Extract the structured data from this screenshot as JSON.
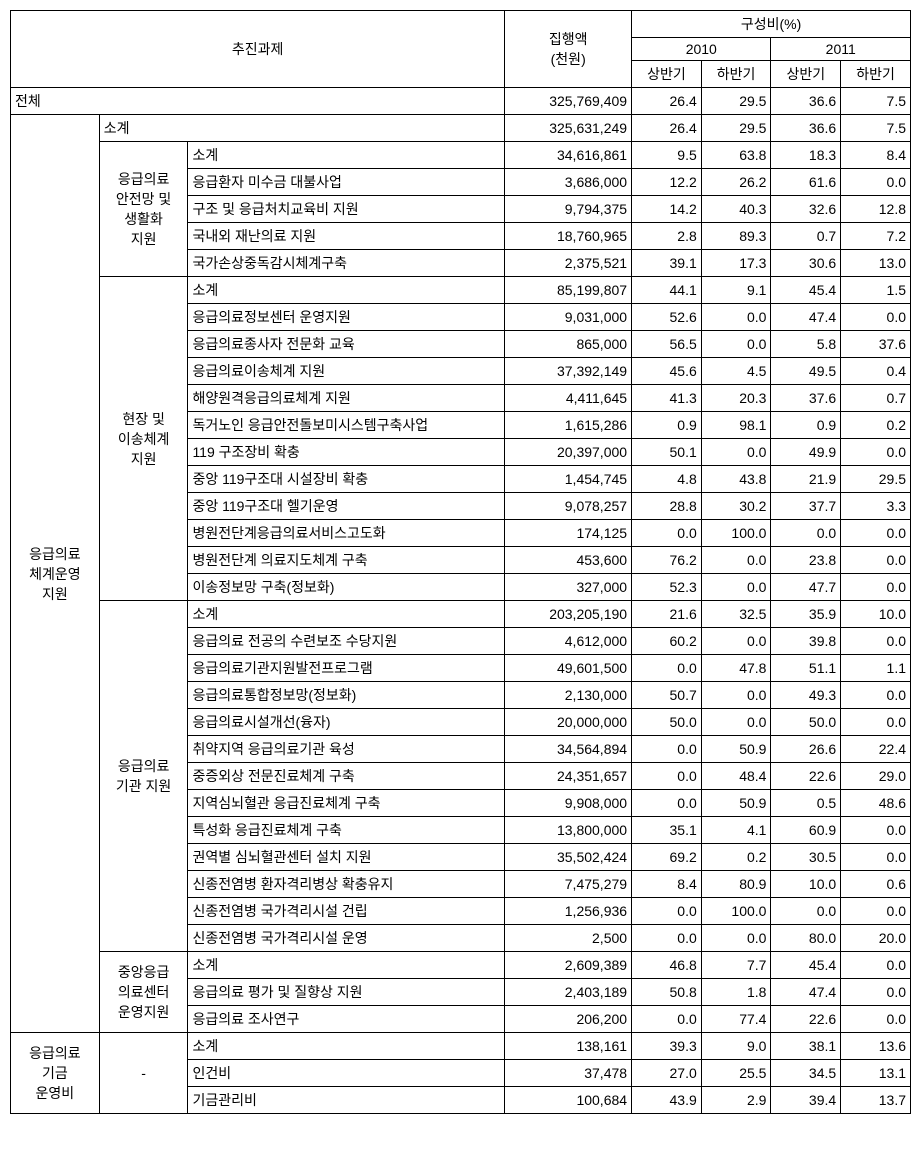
{
  "headers": {
    "task": "추진과제",
    "amount": "집행액\n(천원)",
    "ratio": "구성비(%)",
    "y2010": "2010",
    "y2011": "2011",
    "h1": "상반기",
    "h2": "하반기"
  },
  "total": {
    "label": "전체",
    "amount": "325,769,409",
    "p10h1": "26.4",
    "p10h2": "29.5",
    "p11h1": "36.6",
    "p11h2": "7.5"
  },
  "groupA": {
    "label": "응급의료\n체계운영\n지원",
    "subtotal": {
      "label": "소계",
      "amount": "325,631,249",
      "p10h1": "26.4",
      "p10h2": "29.5",
      "p11h1": "36.6",
      "p11h2": "7.5"
    },
    "sub1": {
      "label": "응급의료\n안전망 및\n생활화\n지원",
      "rows": [
        {
          "name": "소계",
          "amount": "34,616,861",
          "p10h1": "9.5",
          "p10h2": "63.8",
          "p11h1": "18.3",
          "p11h2": "8.4"
        },
        {
          "name": "응급환자 미수금 대불사업",
          "amount": "3,686,000",
          "p10h1": "12.2",
          "p10h2": "26.2",
          "p11h1": "61.6",
          "p11h2": "0.0"
        },
        {
          "name": "구조 및 응급처치교육비 지원",
          "amount": "9,794,375",
          "p10h1": "14.2",
          "p10h2": "40.3",
          "p11h1": "32.6",
          "p11h2": "12.8"
        },
        {
          "name": "국내외 재난의료 지원",
          "amount": "18,760,965",
          "p10h1": "2.8",
          "p10h2": "89.3",
          "p11h1": "0.7",
          "p11h2": "7.2"
        },
        {
          "name": "국가손상중독감시체계구축",
          "amount": "2,375,521",
          "p10h1": "39.1",
          "p10h2": "17.3",
          "p11h1": "30.6",
          "p11h2": "13.0"
        }
      ]
    },
    "sub2": {
      "label": "현장 및\n이송체계\n지원",
      "rows": [
        {
          "name": "소계",
          "amount": "85,199,807",
          "p10h1": "44.1",
          "p10h2": "9.1",
          "p11h1": "45.4",
          "p11h2": "1.5"
        },
        {
          "name": "응급의료정보센터 운영지원",
          "amount": "9,031,000",
          "p10h1": "52.6",
          "p10h2": "0.0",
          "p11h1": "47.4",
          "p11h2": "0.0"
        },
        {
          "name": "응급의료종사자 전문화 교육",
          "amount": "865,000",
          "p10h1": "56.5",
          "p10h2": "0.0",
          "p11h1": "5.8",
          "p11h2": "37.6"
        },
        {
          "name": "응급의료이송체계 지원",
          "amount": "37,392,149",
          "p10h1": "45.6",
          "p10h2": "4.5",
          "p11h1": "49.5",
          "p11h2": "0.4"
        },
        {
          "name": "해양원격응급의료체계 지원",
          "amount": "4,411,645",
          "p10h1": "41.3",
          "p10h2": "20.3",
          "p11h1": "37.6",
          "p11h2": "0.7"
        },
        {
          "name": "독거노인 응급안전돌보미시스템구축사업",
          "amount": "1,615,286",
          "p10h1": "0.9",
          "p10h2": "98.1",
          "p11h1": "0.9",
          "p11h2": "0.2"
        },
        {
          "name": "119 구조장비 확충",
          "amount": "20,397,000",
          "p10h1": "50.1",
          "p10h2": "0.0",
          "p11h1": "49.9",
          "p11h2": "0.0"
        },
        {
          "name": "중앙 119구조대 시설장비 확충",
          "amount": "1,454,745",
          "p10h1": "4.8",
          "p10h2": "43.8",
          "p11h1": "21.9",
          "p11h2": "29.5"
        },
        {
          "name": "중앙 119구조대 헬기운영",
          "amount": "9,078,257",
          "p10h1": "28.8",
          "p10h2": "30.2",
          "p11h1": "37.7",
          "p11h2": "3.3"
        },
        {
          "name": "병원전단계응급의료서비스고도화",
          "amount": "174,125",
          "p10h1": "0.0",
          "p10h2": "100.0",
          "p11h1": "0.0",
          "p11h2": "0.0"
        },
        {
          "name": "병원전단계 의료지도체계 구축",
          "amount": "453,600",
          "p10h1": "76.2",
          "p10h2": "0.0",
          "p11h1": "23.8",
          "p11h2": "0.0"
        },
        {
          "name": "이송정보망 구축(정보화)",
          "amount": "327,000",
          "p10h1": "52.3",
          "p10h2": "0.0",
          "p11h1": "47.7",
          "p11h2": "0.0"
        }
      ]
    },
    "sub3": {
      "label": "응급의료\n기관 지원",
      "rows": [
        {
          "name": "소계",
          "amount": "203,205,190",
          "p10h1": "21.6",
          "p10h2": "32.5",
          "p11h1": "35.9",
          "p11h2": "10.0"
        },
        {
          "name": "응급의료 전공의 수련보조 수당지원",
          "amount": "4,612,000",
          "p10h1": "60.2",
          "p10h2": "0.0",
          "p11h1": "39.8",
          "p11h2": "0.0"
        },
        {
          "name": "응급의료기관지원발전프로그램",
          "amount": "49,601,500",
          "p10h1": "0.0",
          "p10h2": "47.8",
          "p11h1": "51.1",
          "p11h2": "1.1"
        },
        {
          "name": "응급의료통합정보망(정보화)",
          "amount": "2,130,000",
          "p10h1": "50.7",
          "p10h2": "0.0",
          "p11h1": "49.3",
          "p11h2": "0.0"
        },
        {
          "name": "응급의료시설개선(융자)",
          "amount": "20,000,000",
          "p10h1": "50.0",
          "p10h2": "0.0",
          "p11h1": "50.0",
          "p11h2": "0.0"
        },
        {
          "name": "취약지역 응급의료기관 육성",
          "amount": "34,564,894",
          "p10h1": "0.0",
          "p10h2": "50.9",
          "p11h1": "26.6",
          "p11h2": "22.4"
        },
        {
          "name": "중증외상 전문진료체계 구축",
          "amount": "24,351,657",
          "p10h1": "0.0",
          "p10h2": "48.4",
          "p11h1": "22.6",
          "p11h2": "29.0"
        },
        {
          "name": "지역심뇌혈관 응급진료체계 구축",
          "amount": "9,908,000",
          "p10h1": "0.0",
          "p10h2": "50.9",
          "p11h1": "0.5",
          "p11h2": "48.6"
        },
        {
          "name": "특성화 응급진료체계 구축",
          "amount": "13,800,000",
          "p10h1": "35.1",
          "p10h2": "4.1",
          "p11h1": "60.9",
          "p11h2": "0.0"
        },
        {
          "name": "권역별 심뇌혈관센터 설치 지원",
          "amount": "35,502,424",
          "p10h1": "69.2",
          "p10h2": "0.2",
          "p11h1": "30.5",
          "p11h2": "0.0"
        },
        {
          "name": "신종전염병 환자격리병상 확충유지",
          "amount": "7,475,279",
          "p10h1": "8.4",
          "p10h2": "80.9",
          "p11h1": "10.0",
          "p11h2": "0.6"
        },
        {
          "name": "신종전염병 국가격리시설 건립",
          "amount": "1,256,936",
          "p10h1": "0.0",
          "p10h2": "100.0",
          "p11h1": "0.0",
          "p11h2": "0.0"
        },
        {
          "name": "신종전염병 국가격리시설 운영",
          "amount": "2,500",
          "p10h1": "0.0",
          "p10h2": "0.0",
          "p11h1": "80.0",
          "p11h2": "20.0"
        }
      ]
    },
    "sub4": {
      "label": "중앙응급\n의료센터\n운영지원",
      "rows": [
        {
          "name": "소계",
          "amount": "2,609,389",
          "p10h1": "46.8",
          "p10h2": "7.7",
          "p11h1": "45.4",
          "p11h2": "0.0"
        },
        {
          "name": "응급의료 평가 및 질향상 지원",
          "amount": "2,403,189",
          "p10h1": "50.8",
          "p10h2": "1.8",
          "p11h1": "47.4",
          "p11h2": "0.0"
        },
        {
          "name": "응급의료 조사연구",
          "amount": "206,200",
          "p10h1": "0.0",
          "p10h2": "77.4",
          "p11h1": "22.6",
          "p11h2": "0.0"
        }
      ]
    }
  },
  "groupB": {
    "label": "응급의료\n기금\n운영비",
    "sublabel": "-",
    "rows": [
      {
        "name": "소계",
        "amount": "138,161",
        "p10h1": "39.3",
        "p10h2": "9.0",
        "p11h1": "38.1",
        "p11h2": "13.6"
      },
      {
        "name": "인건비",
        "amount": "37,478",
        "p10h1": "27.0",
        "p10h2": "25.5",
        "p11h1": "34.5",
        "p11h2": "13.1"
      },
      {
        "name": "기금관리비",
        "amount": "100,684",
        "p10h1": "43.9",
        "p10h2": "2.9",
        "p11h1": "39.4",
        "p11h2": "13.7"
      }
    ]
  },
  "style": {
    "border_color": "#000000",
    "bg_color": "#ffffff",
    "font_size": 14,
    "font_family": "Malgun Gothic"
  }
}
